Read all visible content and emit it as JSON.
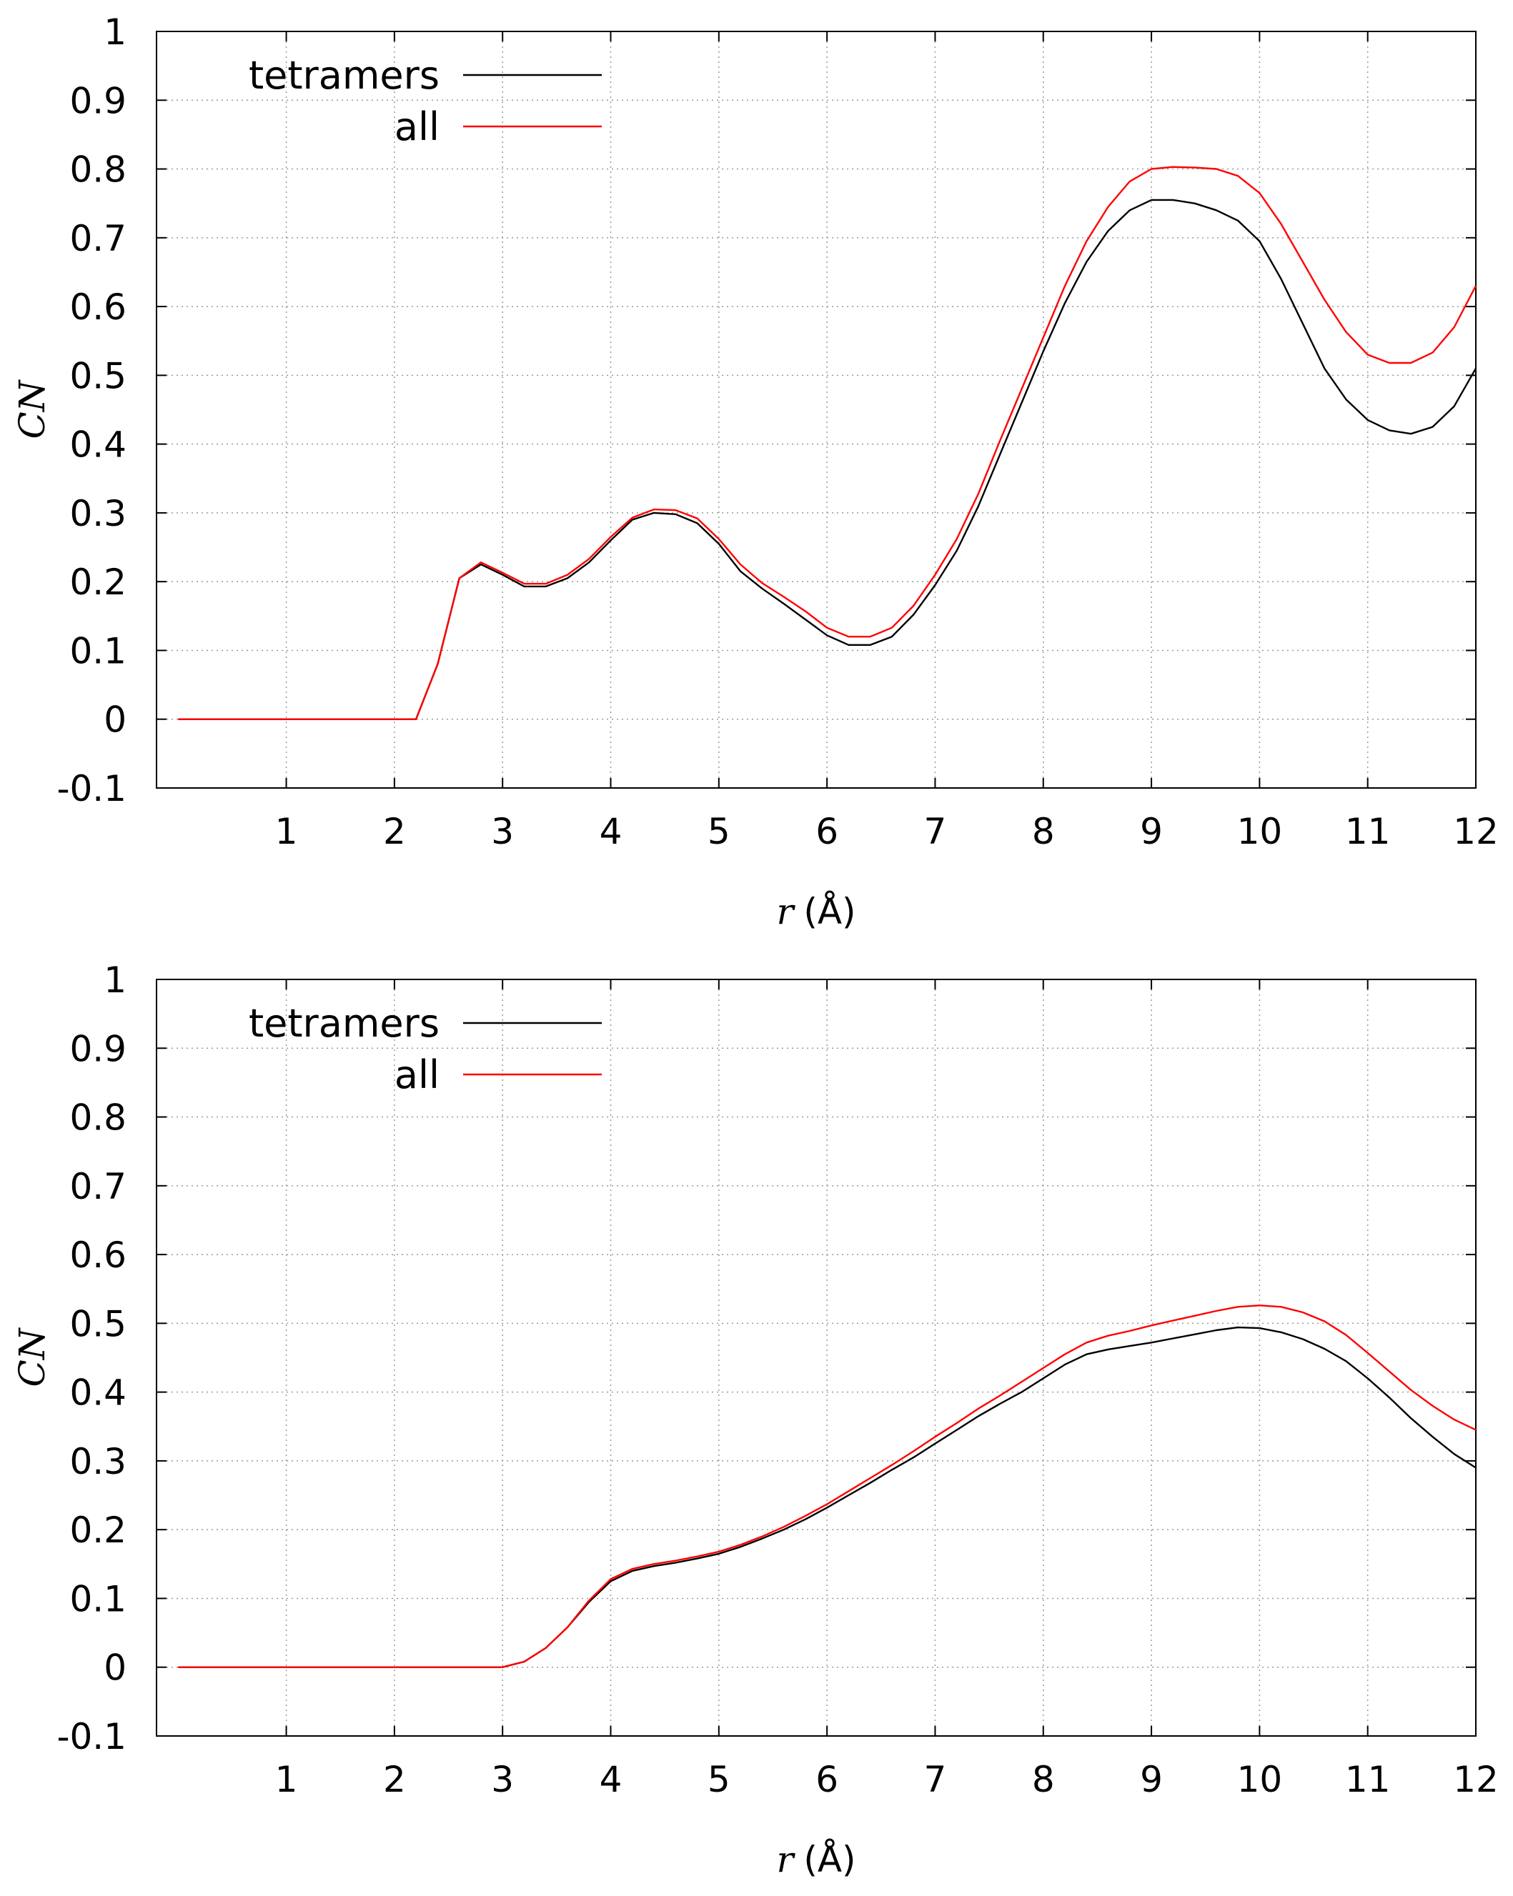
{
  "chart_data": [
    {
      "type": "line",
      "xlabel_var": "r",
      "xlabel_unit": "(Å)",
      "ylabel": "CN",
      "xlim": [
        -0.2,
        12
      ],
      "ylim": [
        -0.1,
        1
      ],
      "xticks": [
        1,
        2,
        3,
        4,
        5,
        6,
        7,
        8,
        9,
        10,
        11,
        12
      ],
      "yticks": [
        -0.1,
        0,
        0.1,
        0.2,
        0.3,
        0.4,
        0.5,
        0.6,
        0.7,
        0.8,
        0.9,
        1
      ],
      "grid": true,
      "legend_position": "top-left",
      "series": [
        {
          "name": "tetramers",
          "color": "#000000",
          "x": [
            0,
            0.5,
            1.0,
            1.5,
            2.0,
            2.2,
            2.4,
            2.6,
            2.8,
            3.0,
            3.2,
            3.4,
            3.6,
            3.8,
            4.0,
            4.2,
            4.4,
            4.6,
            4.8,
            5.0,
            5.2,
            5.4,
            5.6,
            5.8,
            6.0,
            6.2,
            6.4,
            6.6,
            6.8,
            7.0,
            7.2,
            7.4,
            7.6,
            7.8,
            8.0,
            8.2,
            8.4,
            8.6,
            8.8,
            9.0,
            9.2,
            9.4,
            9.6,
            9.8,
            10.0,
            10.2,
            10.4,
            10.6,
            10.8,
            11.0,
            11.2,
            11.4,
            11.6,
            11.8,
            12.0
          ],
          "values": [
            0,
            0,
            0,
            0,
            0,
            0,
            0.08,
            0.205,
            0.225,
            0.21,
            0.193,
            0.193,
            0.205,
            0.228,
            0.26,
            0.29,
            0.3,
            0.298,
            0.285,
            0.255,
            0.215,
            0.19,
            0.168,
            0.145,
            0.122,
            0.108,
            0.108,
            0.12,
            0.152,
            0.195,
            0.245,
            0.31,
            0.385,
            0.46,
            0.535,
            0.605,
            0.665,
            0.71,
            0.74,
            0.755,
            0.755,
            0.75,
            0.74,
            0.725,
            0.695,
            0.64,
            0.575,
            0.51,
            0.465,
            0.435,
            0.42,
            0.415,
            0.425,
            0.455,
            0.51
          ]
        },
        {
          "name": "all",
          "color": "#ff0000",
          "x": [
            0,
            0.5,
            1.0,
            1.5,
            2.0,
            2.2,
            2.4,
            2.6,
            2.8,
            3.0,
            3.2,
            3.4,
            3.6,
            3.8,
            4.0,
            4.2,
            4.4,
            4.6,
            4.8,
            5.0,
            5.2,
            5.4,
            5.6,
            5.8,
            6.0,
            6.2,
            6.4,
            6.6,
            6.8,
            7.0,
            7.2,
            7.4,
            7.6,
            7.8,
            8.0,
            8.2,
            8.4,
            8.6,
            8.8,
            9.0,
            9.2,
            9.4,
            9.6,
            9.8,
            10.0,
            10.2,
            10.4,
            10.6,
            10.8,
            11.0,
            11.2,
            11.4,
            11.6,
            11.8,
            12.0
          ],
          "values": [
            0,
            0,
            0,
            0,
            0,
            0,
            0.08,
            0.205,
            0.228,
            0.213,
            0.197,
            0.197,
            0.21,
            0.233,
            0.265,
            0.293,
            0.305,
            0.304,
            0.292,
            0.262,
            0.225,
            0.198,
            0.178,
            0.157,
            0.133,
            0.12,
            0.12,
            0.133,
            0.165,
            0.21,
            0.262,
            0.328,
            0.405,
            0.48,
            0.555,
            0.63,
            0.695,
            0.745,
            0.782,
            0.8,
            0.803,
            0.802,
            0.8,
            0.79,
            0.765,
            0.72,
            0.665,
            0.61,
            0.563,
            0.53,
            0.518,
            0.518,
            0.533,
            0.57,
            0.63
          ]
        }
      ]
    },
    {
      "type": "line",
      "xlabel_var": "r",
      "xlabel_unit": "(Å)",
      "ylabel": "CN",
      "xlim": [
        -0.2,
        12
      ],
      "ylim": [
        -0.1,
        1
      ],
      "xticks": [
        1,
        2,
        3,
        4,
        5,
        6,
        7,
        8,
        9,
        10,
        11,
        12
      ],
      "yticks": [
        -0.1,
        0,
        0.1,
        0.2,
        0.3,
        0.4,
        0.5,
        0.6,
        0.7,
        0.8,
        0.9,
        1
      ],
      "grid": true,
      "legend_position": "top-left",
      "series": [
        {
          "name": "tetramers",
          "color": "#000000",
          "x": [
            0,
            0.5,
            1.0,
            1.5,
            2.0,
            2.5,
            3.0,
            3.2,
            3.4,
            3.6,
            3.8,
            4.0,
            4.2,
            4.4,
            4.6,
            4.8,
            5.0,
            5.2,
            5.4,
            5.6,
            5.8,
            6.0,
            6.2,
            6.4,
            6.6,
            6.8,
            7.0,
            7.2,
            7.4,
            7.6,
            7.8,
            8.0,
            8.2,
            8.4,
            8.6,
            8.8,
            9.0,
            9.2,
            9.4,
            9.6,
            9.8,
            10.0,
            10.2,
            10.4,
            10.6,
            10.8,
            11.0,
            11.2,
            11.4,
            11.6,
            11.8,
            12.0
          ],
          "values": [
            0,
            0,
            0,
            0,
            0,
            0,
            0,
            0.008,
            0.028,
            0.058,
            0.095,
            0.125,
            0.14,
            0.147,
            0.152,
            0.158,
            0.165,
            0.175,
            0.187,
            0.2,
            0.215,
            0.232,
            0.25,
            0.268,
            0.287,
            0.305,
            0.325,
            0.345,
            0.365,
            0.383,
            0.4,
            0.42,
            0.44,
            0.455,
            0.462,
            0.467,
            0.472,
            0.478,
            0.484,
            0.49,
            0.494,
            0.493,
            0.487,
            0.477,
            0.463,
            0.445,
            0.42,
            0.392,
            0.362,
            0.335,
            0.31,
            0.29
          ]
        },
        {
          "name": "all",
          "color": "#ff0000",
          "x": [
            0,
            0.5,
            1.0,
            1.5,
            2.0,
            2.5,
            3.0,
            3.2,
            3.4,
            3.6,
            3.8,
            4.0,
            4.2,
            4.4,
            4.6,
            4.8,
            5.0,
            5.2,
            5.4,
            5.6,
            5.8,
            6.0,
            6.2,
            6.4,
            6.6,
            6.8,
            7.0,
            7.2,
            7.4,
            7.6,
            7.8,
            8.0,
            8.2,
            8.4,
            8.6,
            8.8,
            9.0,
            9.2,
            9.4,
            9.6,
            9.8,
            10.0,
            10.2,
            10.4,
            10.6,
            10.8,
            11.0,
            11.2,
            11.4,
            11.6,
            11.8,
            12.0
          ],
          "values": [
            0,
            0,
            0,
            0,
            0,
            0,
            0,
            0.008,
            0.028,
            0.058,
            0.097,
            0.128,
            0.143,
            0.15,
            0.155,
            0.161,
            0.168,
            0.178,
            0.19,
            0.204,
            0.22,
            0.237,
            0.256,
            0.275,
            0.294,
            0.314,
            0.335,
            0.355,
            0.376,
            0.395,
            0.415,
            0.435,
            0.455,
            0.472,
            0.482,
            0.489,
            0.497,
            0.504,
            0.511,
            0.518,
            0.524,
            0.526,
            0.524,
            0.516,
            0.503,
            0.483,
            0.457,
            0.43,
            0.403,
            0.38,
            0.36,
            0.345
          ]
        }
      ]
    }
  ]
}
